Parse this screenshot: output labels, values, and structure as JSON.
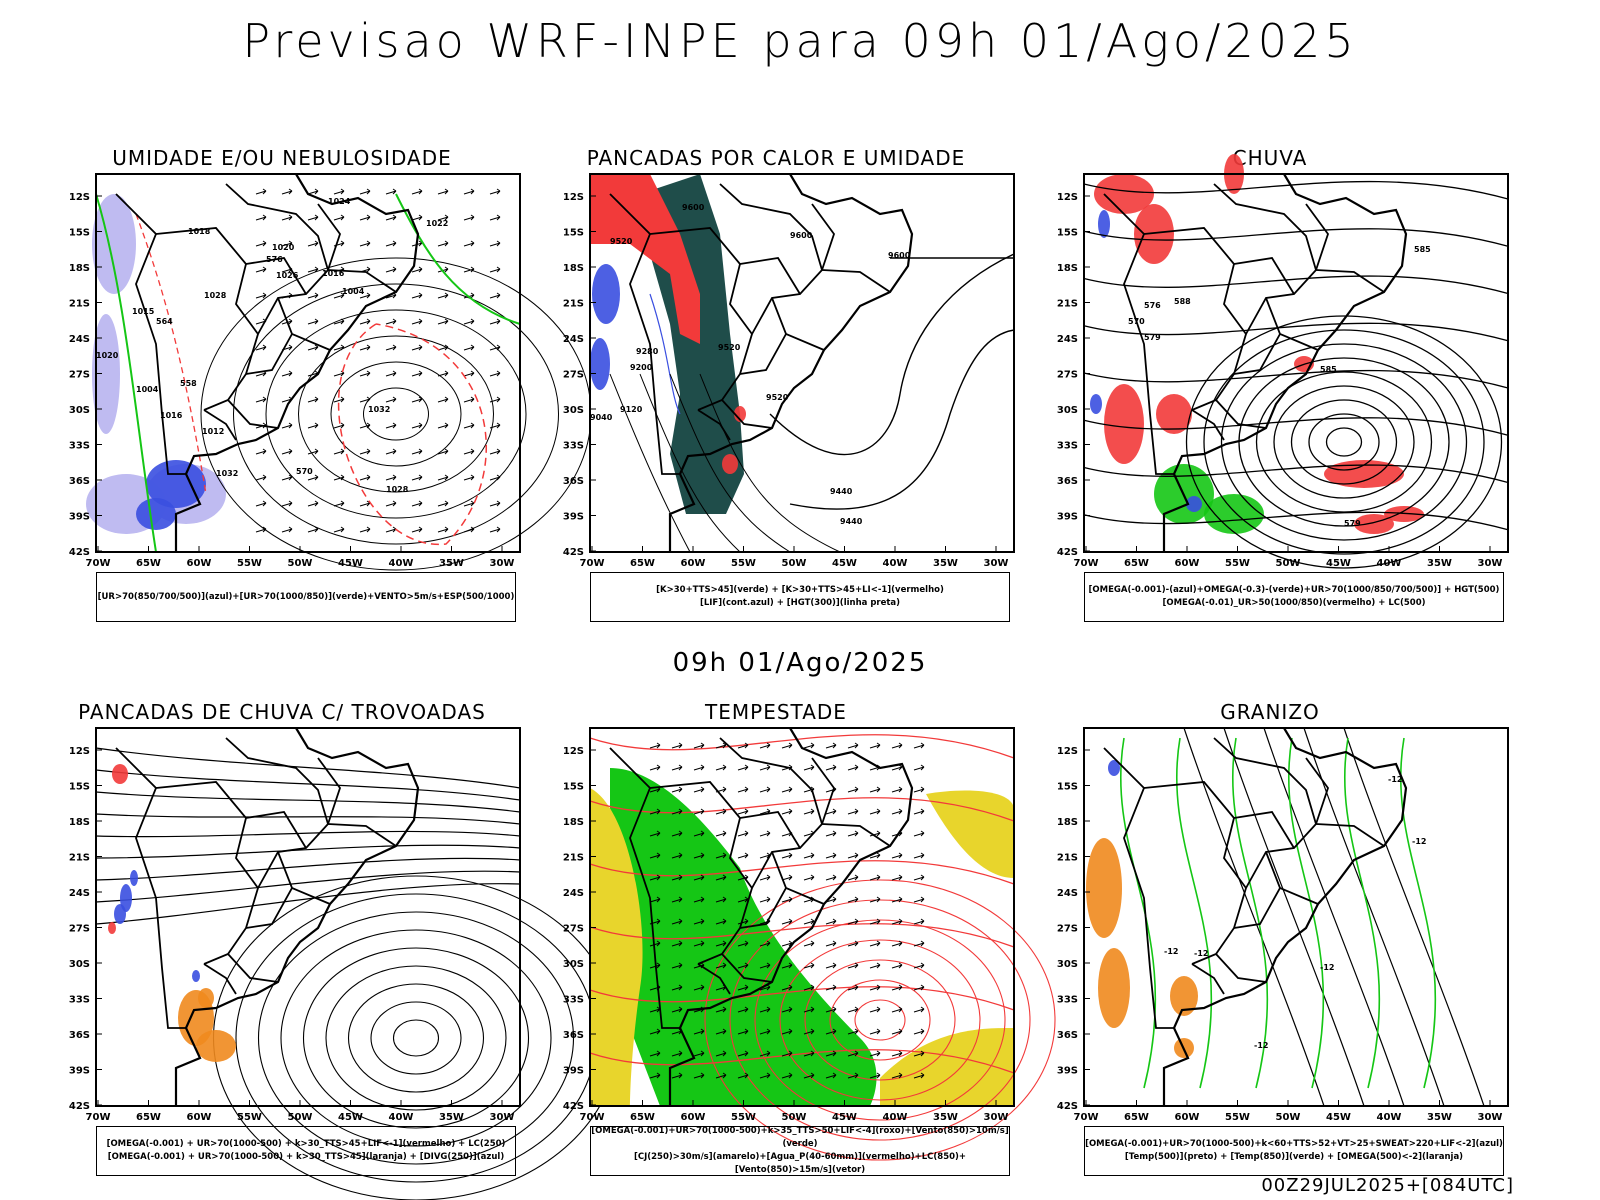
{
  "title": "Previsao WRF-INPE  para 09h 01/Ago/2025",
  "subtitle": "09h 01/Ago/2025",
  "footer": "00Z29JUL2025+[084UTC]",
  "lat_ticks": [
    "12S",
    "15S",
    "18S",
    "21S",
    "24S",
    "27S",
    "30S",
    "33S",
    "36S",
    "39S",
    "42S"
  ],
  "lon_ticks": [
    "70W",
    "65W",
    "60W",
    "55W",
    "50W",
    "45W",
    "40W",
    "35W",
    "30W"
  ],
  "colors": {
    "blue": "#3a4fe0",
    "lavender": "#b8b4f0",
    "green": "#15c615",
    "red": "#f23a3a",
    "teal": "#1f4d4a",
    "orange": "#f08a1e",
    "yellow": "#e8d52c"
  },
  "panels": [
    {
      "title": "UMIDADE E/OU NEBULOSIDADE",
      "caption": [
        "[UR>70(850/700/500)](azul)+[UR>70(1000/850)](verde)+VENTO>5m/s+ESP(500/1000)"
      ],
      "contour_labels": [
        "1024",
        "1022",
        "1018",
        "1020",
        "1026",
        "1016",
        "1028",
        "1004",
        "1015",
        "1020",
        "1032",
        "1004",
        "1016",
        "1032",
        "1028",
        "1012",
        "576",
        "570",
        "558",
        "564"
      ]
    },
    {
      "title": "PANCADAS POR CALOR E UMIDADE",
      "caption": [
        "[K>30+TTS>45](verde) + [K>30+TTS>45+LI<-1](vermelho)",
        "[LIF](cont.azul) + [HGT(300)](linha preta)"
      ],
      "contour_labels": [
        "9600",
        "9520",
        "9600",
        "9600",
        "9440",
        "9520",
        "9280",
        "9200",
        "9520",
        "9120",
        "9440",
        "9040"
      ]
    },
    {
      "title": "CHUVA",
      "caption": [
        "[OMEGA(-0.001)-(azul)+OMEGA(-0.3)-(verde)+UR>70(1000/850/700/500)] + HGT(500)",
        "[OMEGA(-0.01)_UR>50(1000/850)(vermelho) + LC(500)"
      ],
      "contour_labels": [
        "585",
        "576",
        "570",
        "588",
        "579",
        "585",
        "579"
      ]
    },
    {
      "title": "PANCADAS DE CHUVA C/ TROVOADAS",
      "caption": [
        "[OMEGA(-0.001) + UR>70(1000-500) + k>30_TTS>45+LIF<-1](vermelho) + LC(250)",
        "[OMEGA(-0.001) + UR>70(1000-500) + k>30_TTS>45](laranja) + [DIVG(250)](azul)"
      ],
      "contour_labels": []
    },
    {
      "title": "TEMPESTADE",
      "caption": [
        "[OMEGA(-0.001)+UR>70(1000-500)+k>35_TTS>50+LIF<-4](roxo)+[Vento(850)>10m/s](verde)",
        "[CJ(250)>30m/s](amarelo)+[Agua_P(40-60mm)](vermelho)+LC(850)+[Vento(850)>15m/s](vetor)"
      ],
      "contour_labels": []
    },
    {
      "title": "GRANIZO",
      "caption": [
        "[OMEGA(-0.001)+UR>70(1000-500)+k<60+TTS>52+VT>25+SWEAT>220+LIF<-2](azul)",
        "[Temp(500)](preto) + [Temp(850)](verde) + [OMEGA(500)<-2](laranja)"
      ],
      "contour_labels": [
        "-12",
        "-12",
        "-12",
        "-12",
        "-12",
        "-12"
      ]
    }
  ]
}
